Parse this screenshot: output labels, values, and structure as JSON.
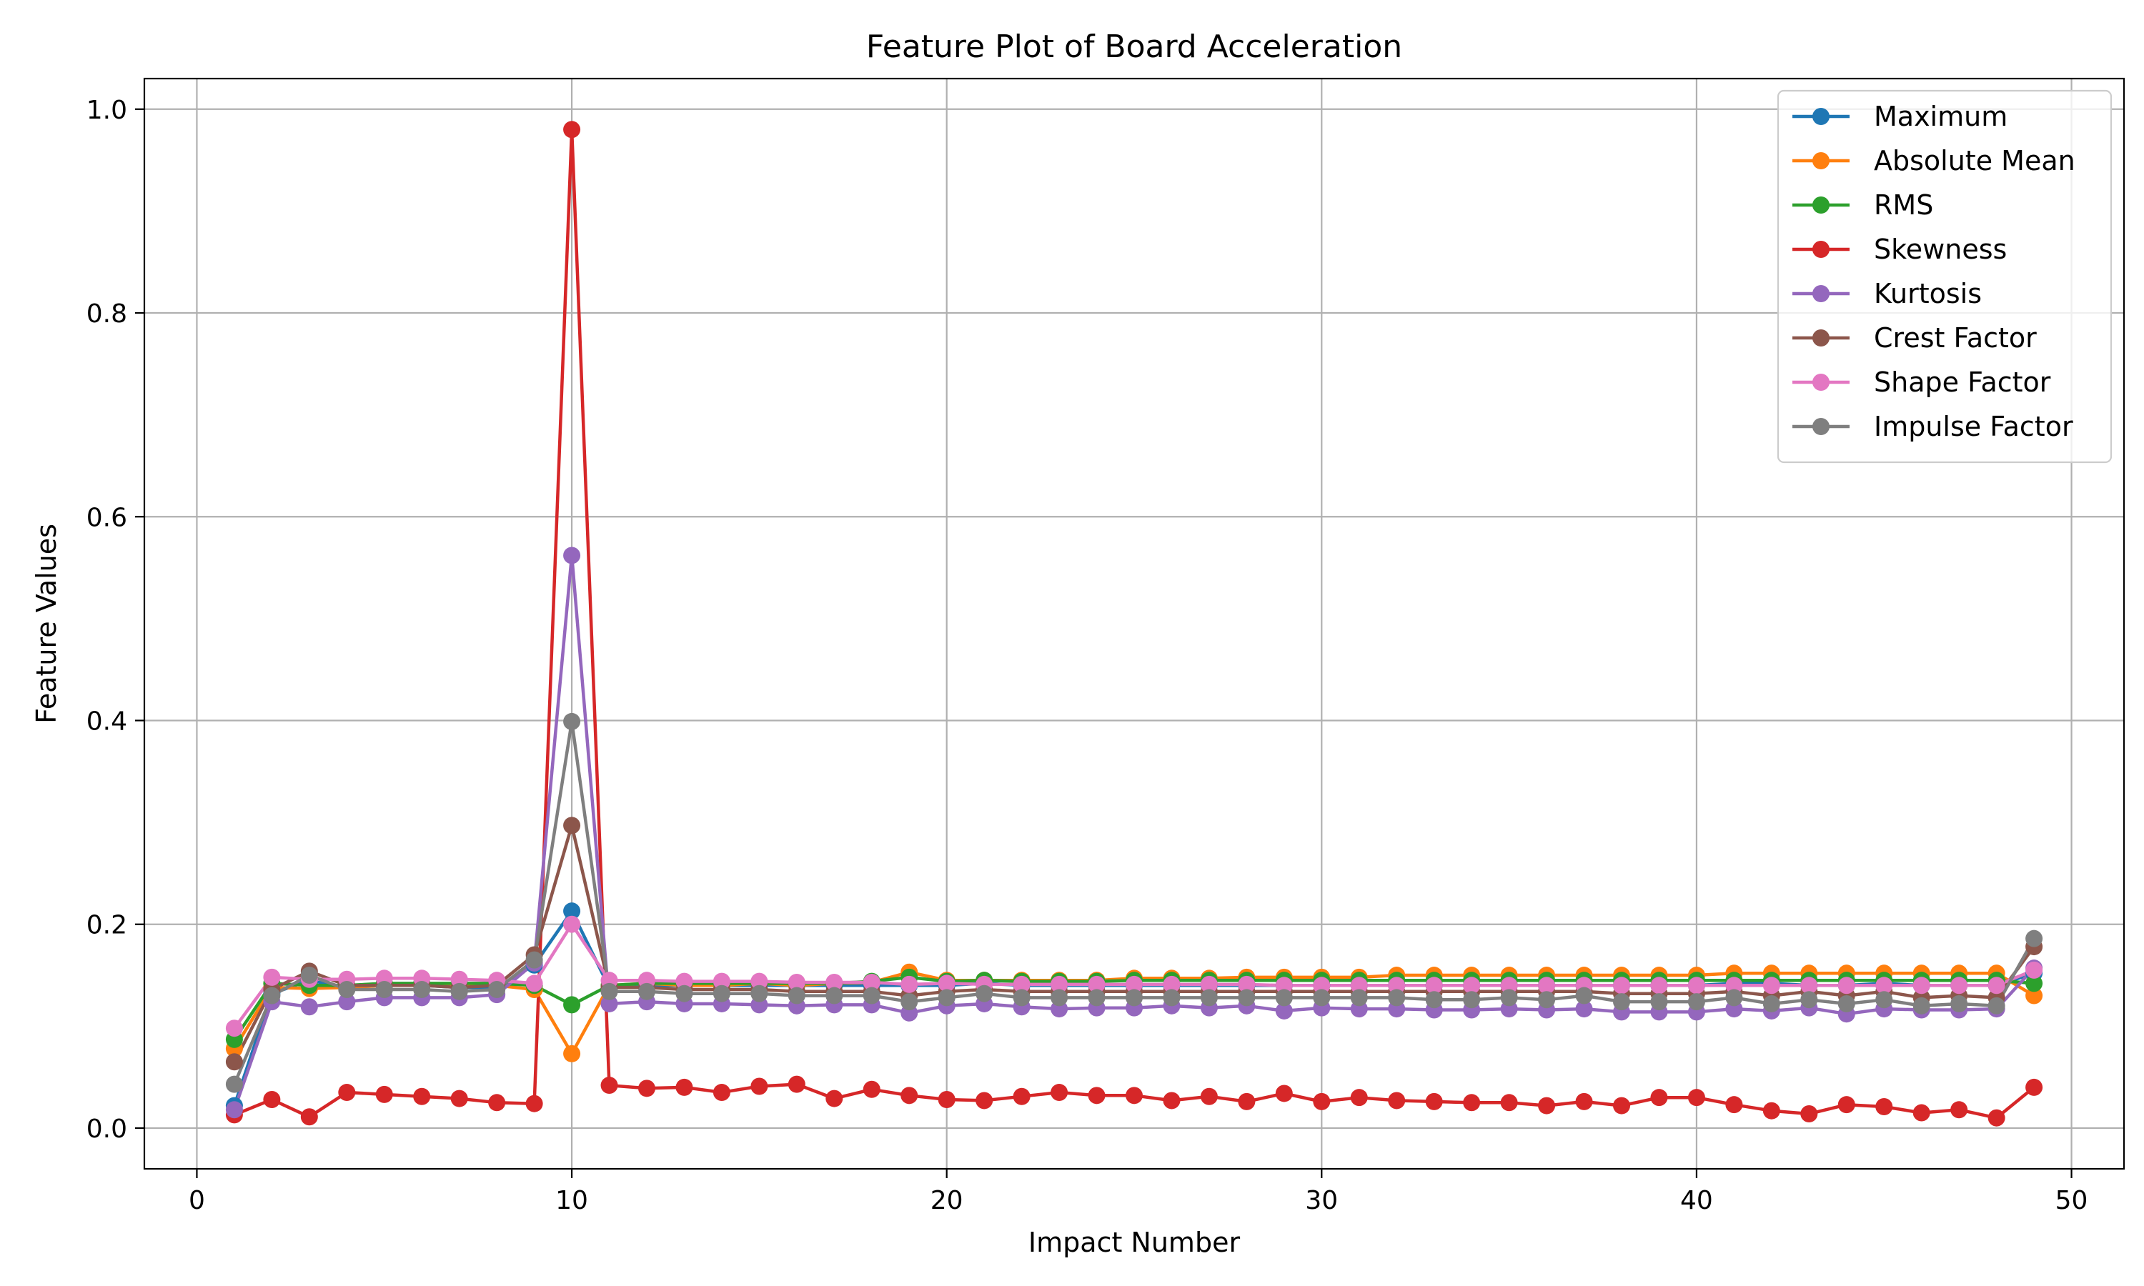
{
  "chart_data": {
    "type": "line",
    "title": "Feature Plot of Board Acceleration",
    "xlabel": "Impact Number",
    "ylabel": "Feature Values",
    "xlim": [
      -1.4,
      51.4
    ],
    "ylim": [
      -0.04,
      1.03
    ],
    "xticks": [
      0,
      10,
      20,
      30,
      40,
      50
    ],
    "xtick_labels": [
      "0",
      "10",
      "20",
      "30",
      "40",
      "50"
    ],
    "yticks": [
      0.0,
      0.2,
      0.4,
      0.6,
      0.8,
      1.0
    ],
    "ytick_labels": [
      "0.0",
      "0.2",
      "0.4",
      "0.6",
      "0.8",
      "1.0"
    ],
    "grid": true,
    "legend_position": "top-right",
    "x": [
      1,
      2,
      3,
      4,
      5,
      6,
      7,
      8,
      9,
      10,
      11,
      12,
      13,
      14,
      15,
      16,
      17,
      18,
      19,
      20,
      21,
      22,
      23,
      24,
      25,
      26,
      27,
      28,
      29,
      30,
      31,
      32,
      33,
      34,
      35,
      36,
      37,
      38,
      39,
      40,
      41,
      42,
      43,
      44,
      45,
      46,
      47,
      48,
      49
    ],
    "series": [
      {
        "name": "Maximum",
        "color": "#1f77b4",
        "values": [
          0.022,
          0.132,
          0.145,
          0.138,
          0.14,
          0.14,
          0.138,
          0.138,
          0.16,
          0.213,
          0.138,
          0.14,
          0.14,
          0.14,
          0.14,
          0.14,
          0.14,
          0.14,
          0.14,
          0.14,
          0.142,
          0.14,
          0.14,
          0.14,
          0.14,
          0.14,
          0.14,
          0.14,
          0.14,
          0.14,
          0.14,
          0.14,
          0.14,
          0.14,
          0.14,
          0.14,
          0.14,
          0.14,
          0.14,
          0.14,
          0.142,
          0.142,
          0.14,
          0.14,
          0.142,
          0.14,
          0.14,
          0.14,
          0.152
        ]
      },
      {
        "name": "Absolute Mean",
        "color": "#ff7f0e",
        "values": [
          0.078,
          0.138,
          0.137,
          0.138,
          0.14,
          0.14,
          0.14,
          0.14,
          0.136,
          0.073,
          0.14,
          0.142,
          0.14,
          0.14,
          0.142,
          0.14,
          0.142,
          0.143,
          0.153,
          0.145,
          0.145,
          0.145,
          0.145,
          0.145,
          0.147,
          0.147,
          0.147,
          0.148,
          0.148,
          0.148,
          0.148,
          0.15,
          0.15,
          0.15,
          0.15,
          0.15,
          0.15,
          0.15,
          0.15,
          0.15,
          0.152,
          0.152,
          0.152,
          0.152,
          0.152,
          0.152,
          0.152,
          0.152,
          0.13
        ]
      },
      {
        "name": "RMS",
        "color": "#2ca02c",
        "values": [
          0.087,
          0.142,
          0.14,
          0.14,
          0.142,
          0.142,
          0.142,
          0.142,
          0.14,
          0.121,
          0.14,
          0.142,
          0.142,
          0.142,
          0.142,
          0.142,
          0.142,
          0.144,
          0.148,
          0.144,
          0.145,
          0.144,
          0.144,
          0.144,
          0.145,
          0.145,
          0.145,
          0.145,
          0.145,
          0.145,
          0.145,
          0.145,
          0.145,
          0.145,
          0.145,
          0.145,
          0.145,
          0.145,
          0.145,
          0.145,
          0.145,
          0.145,
          0.145,
          0.145,
          0.145,
          0.145,
          0.145,
          0.145,
          0.142
        ]
      },
      {
        "name": "Skewness",
        "color": "#d62728",
        "values": [
          0.013,
          0.028,
          0.011,
          0.035,
          0.033,
          0.031,
          0.029,
          0.025,
          0.024,
          0.98,
          0.042,
          0.039,
          0.04,
          0.035,
          0.041,
          0.043,
          0.029,
          0.038,
          0.032,
          0.028,
          0.027,
          0.031,
          0.035,
          0.032,
          0.032,
          0.027,
          0.031,
          0.026,
          0.034,
          0.026,
          0.03,
          0.027,
          0.026,
          0.025,
          0.025,
          0.022,
          0.026,
          0.022,
          0.03,
          0.03,
          0.023,
          0.017,
          0.014,
          0.023,
          0.021,
          0.015,
          0.018,
          0.01,
          0.04
        ]
      },
      {
        "name": "Kurtosis",
        "color": "#9467bd",
        "values": [
          0.018,
          0.124,
          0.119,
          0.124,
          0.128,
          0.128,
          0.128,
          0.131,
          0.162,
          0.562,
          0.122,
          0.124,
          0.122,
          0.122,
          0.121,
          0.12,
          0.121,
          0.121,
          0.113,
          0.12,
          0.122,
          0.119,
          0.117,
          0.118,
          0.118,
          0.12,
          0.118,
          0.12,
          0.115,
          0.118,
          0.117,
          0.117,
          0.116,
          0.116,
          0.117,
          0.116,
          0.117,
          0.114,
          0.114,
          0.114,
          0.117,
          0.115,
          0.118,
          0.112,
          0.117,
          0.116,
          0.116,
          0.117,
          0.157
        ]
      },
      {
        "name": "Crest Factor",
        "color": "#8c564b",
        "values": [
          0.065,
          0.136,
          0.154,
          0.14,
          0.14,
          0.14,
          0.138,
          0.14,
          0.17,
          0.297,
          0.138,
          0.138,
          0.136,
          0.136,
          0.136,
          0.134,
          0.134,
          0.134,
          0.13,
          0.134,
          0.136,
          0.134,
          0.134,
          0.134,
          0.134,
          0.134,
          0.134,
          0.134,
          0.134,
          0.134,
          0.134,
          0.134,
          0.134,
          0.134,
          0.134,
          0.134,
          0.134,
          0.132,
          0.132,
          0.132,
          0.134,
          0.13,
          0.134,
          0.13,
          0.134,
          0.128,
          0.13,
          0.128,
          0.178
        ]
      },
      {
        "name": "Shape Factor",
        "color": "#e377c2",
        "values": [
          0.098,
          0.148,
          0.146,
          0.146,
          0.147,
          0.147,
          0.146,
          0.145,
          0.142,
          0.2,
          0.145,
          0.145,
          0.144,
          0.144,
          0.144,
          0.143,
          0.143,
          0.143,
          0.141,
          0.142,
          0.141,
          0.141,
          0.141,
          0.141,
          0.141,
          0.141,
          0.141,
          0.141,
          0.14,
          0.14,
          0.14,
          0.14,
          0.14,
          0.14,
          0.14,
          0.14,
          0.14,
          0.14,
          0.14,
          0.14,
          0.14,
          0.14,
          0.14,
          0.14,
          0.14,
          0.14,
          0.14,
          0.14,
          0.155
        ]
      },
      {
        "name": "Impulse Factor",
        "color": "#7f7f7f",
        "values": [
          0.043,
          0.13,
          0.15,
          0.136,
          0.136,
          0.136,
          0.134,
          0.136,
          0.165,
          0.399,
          0.134,
          0.134,
          0.132,
          0.132,
          0.132,
          0.13,
          0.13,
          0.13,
          0.124,
          0.128,
          0.132,
          0.128,
          0.128,
          0.128,
          0.128,
          0.128,
          0.128,
          0.128,
          0.128,
          0.128,
          0.128,
          0.128,
          0.126,
          0.126,
          0.128,
          0.126,
          0.13,
          0.124,
          0.124,
          0.124,
          0.128,
          0.122,
          0.126,
          0.122,
          0.126,
          0.12,
          0.122,
          0.12,
          0.186
        ]
      }
    ]
  }
}
